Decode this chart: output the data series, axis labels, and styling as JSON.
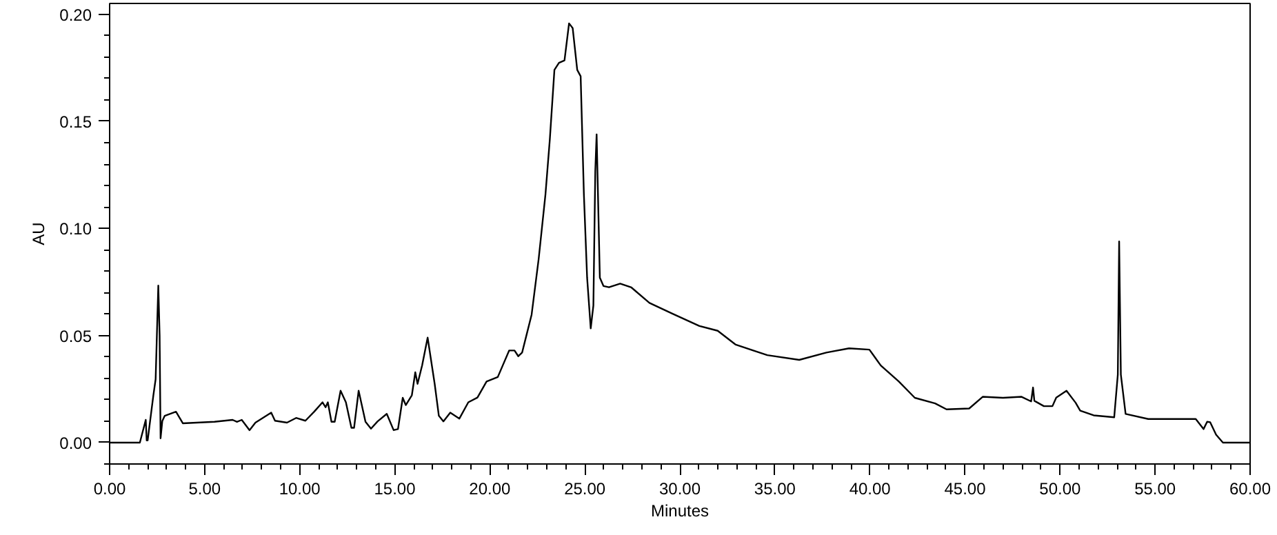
{
  "chart_data": {
    "type": "line",
    "xlabel": "Minutes",
    "ylabel": "AU",
    "grid": false,
    "marker": "none",
    "line_style": "solid",
    "xlim": [
      0,
      60
    ],
    "ylim": [
      -0.01,
      0.205
    ],
    "xticks": [
      {
        "value": 0,
        "label": "0.00"
      },
      {
        "value": 5,
        "label": "5.00"
      },
      {
        "value": 10,
        "label": "10.00"
      },
      {
        "value": 15,
        "label": "15.00"
      },
      {
        "value": 20,
        "label": "20.00"
      },
      {
        "value": 25,
        "label": "25.00"
      },
      {
        "value": 30,
        "label": "30.00"
      },
      {
        "value": 35,
        "label": "35.00"
      },
      {
        "value": 40,
        "label": "40.00"
      },
      {
        "value": 45,
        "label": "45.00"
      },
      {
        "value": 50,
        "label": "50.00"
      },
      {
        "value": 55,
        "label": "55.00"
      },
      {
        "value": 60,
        "label": "60.00"
      }
    ],
    "yticks": [
      {
        "value": 0,
        "label": "0.00"
      },
      {
        "value": 0.05,
        "label": "0.05"
      },
      {
        "value": 0.1,
        "label": "0.10"
      },
      {
        "value": 0.15,
        "label": "0.15"
      },
      {
        "value": 0.2,
        "label": "0.20"
      }
    ],
    "series": [
      {
        "color": "#000000",
        "x": [
          0,
          1.59,
          1.9,
          1.95,
          2.0,
          2.3,
          2.42,
          2.56,
          2.63,
          2.68,
          2.77,
          2.9,
          3.49,
          3.85,
          5.52,
          6.47,
          6.7,
          6.95,
          7.36,
          7.67,
          8.5,
          8.7,
          9.33,
          9.81,
          10.3,
          10.77,
          11.2,
          11.36,
          11.48,
          11.67,
          11.84,
          12.15,
          12.43,
          12.72,
          12.86,
          13.1,
          13.46,
          13.75,
          14.1,
          14.58,
          14.94,
          15.17,
          15.42,
          15.58,
          15.9,
          16.08,
          16.2,
          16.44,
          16.73,
          17.1,
          17.32,
          17.56,
          17.92,
          18.4,
          18.87,
          19.35,
          19.83,
          20.42,
          21.02,
          21.3,
          21.5,
          21.7,
          22.2,
          22.57,
          22.93,
          23.16,
          23.4,
          23.64,
          23.93,
          24.17,
          24.36,
          24.6,
          24.78,
          24.95,
          25.12,
          25.31,
          25.45,
          25.55,
          25.62,
          25.79,
          25.98,
          26.27,
          26.86,
          27.45,
          28.4,
          29.6,
          31.03,
          31.99,
          32.94,
          34.6,
          36.28,
          37.71,
          38.9,
          39.97,
          40.57,
          41.52,
          42.36,
          43.43,
          44.03,
          45.22,
          45.94,
          47.0,
          47.96,
          48.48,
          48.58,
          48.65,
          49.15,
          49.6,
          49.8,
          50.34,
          50.82,
          51.06,
          51.77,
          52.85,
          53.04,
          53.11,
          53.2,
          53.45,
          54.64,
          57.14,
          57.55,
          57.74,
          57.9,
          58.21,
          58.57,
          60
        ],
        "values": [
          0,
          0,
          0.0106,
          0.001,
          0.001,
          0.022,
          0.0296,
          0.0733,
          0.05,
          0.002,
          0.01,
          0.0125,
          0.0144,
          0.009,
          0.0097,
          0.0106,
          0.0097,
          0.0106,
          0.0058,
          0.0093,
          0.014,
          0.0102,
          0.0093,
          0.0115,
          0.0102,
          0.0145,
          0.0188,
          0.0165,
          0.0188,
          0.0097,
          0.0097,
          0.0242,
          0.0188,
          0.0069,
          0.0069,
          0.0242,
          0.0097,
          0.0065,
          0.0099,
          0.0134,
          0.0058,
          0.0063,
          0.0209,
          0.0175,
          0.0221,
          0.0328,
          0.0274,
          0.036,
          0.049,
          0.0274,
          0.0125,
          0.0099,
          0.014,
          0.0112,
          0.0188,
          0.021,
          0.0285,
          0.0306,
          0.043,
          0.043,
          0.0403,
          0.042,
          0.0597,
          0.0856,
          0.116,
          0.1417,
          0.174,
          0.1773,
          0.1784,
          0.1957,
          0.1935,
          0.174,
          0.171,
          0.116,
          0.077,
          0.0533,
          0.064,
          0.1267,
          0.1439,
          0.077,
          0.0731,
          0.0725,
          0.0742,
          0.0724,
          0.0652,
          0.0602,
          0.0544,
          0.0522,
          0.0457,
          0.0408,
          0.0386,
          0.042,
          0.044,
          0.0434,
          0.036,
          0.0285,
          0.0209,
          0.0183,
          0.0155,
          0.0159,
          0.0214,
          0.0209,
          0.0214,
          0.0192,
          0.0257,
          0.0195,
          0.017,
          0.017,
          0.021,
          0.0242,
          0.0186,
          0.0149,
          0.0127,
          0.0118,
          0.0317,
          0.0939,
          0.0317,
          0.0134,
          0.011,
          0.011,
          0.0063,
          0.0097,
          0.0095,
          0.0037,
          0,
          0
        ]
      }
    ]
  }
}
